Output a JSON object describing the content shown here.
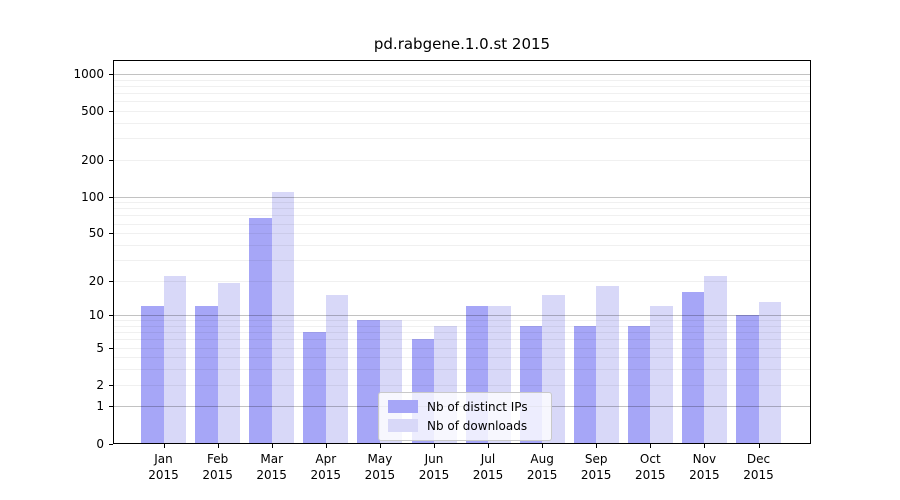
{
  "title": "pd.rabgene.1.0.st 2015",
  "colors": {
    "ips_bar": "#a6a6f7",
    "downloads_bar": "#d8d8f8",
    "grid_decade": "rgba(0,0,0,0.24)",
    "grid_minor": "rgba(0,0,0,0.06)"
  },
  "legend": {
    "items": [
      {
        "label": "Nb of distinct IPs",
        "series": "ips"
      },
      {
        "label": "Nb of downloads",
        "series": "downloads"
      }
    ]
  },
  "chart_data": {
    "type": "bar",
    "title": "pd.rabgene.1.0.st 2015",
    "categories": [
      "Jan",
      "Feb",
      "Mar",
      "Apr",
      "May",
      "Jun",
      "Jul",
      "Aug",
      "Sep",
      "Oct",
      "Nov",
      "Dec"
    ],
    "category_year": "2015",
    "series": [
      {
        "name": "Nb of distinct IPs",
        "color": "#a6a6f7",
        "values": [
          12,
          12,
          67,
          7,
          9,
          6,
          12,
          8,
          8,
          8,
          16,
          10
        ]
      },
      {
        "name": "Nb of downloads",
        "color": "#d8d8f8",
        "values": [
          22,
          19,
          110,
          15,
          9,
          8,
          12,
          15,
          18,
          12,
          22,
          13
        ]
      }
    ],
    "y_ticks": [
      0,
      1,
      2,
      5,
      10,
      20,
      50,
      100,
      200,
      500,
      1000
    ],
    "y_minor_gridlines": [
      2,
      3,
      4,
      5,
      6,
      7,
      8,
      9,
      20,
      30,
      40,
      50,
      60,
      70,
      80,
      90,
      200,
      300,
      400,
      500,
      600,
      700,
      800,
      900
    ],
    "y_decade_gridlines": [
      1,
      10,
      100,
      1000
    ],
    "y_scale": "log10(value+1)",
    "ylim": [
      0,
      1300
    ],
    "grid": true,
    "legend_position": "lower center",
    "xlabel": "",
    "ylabel": ""
  }
}
